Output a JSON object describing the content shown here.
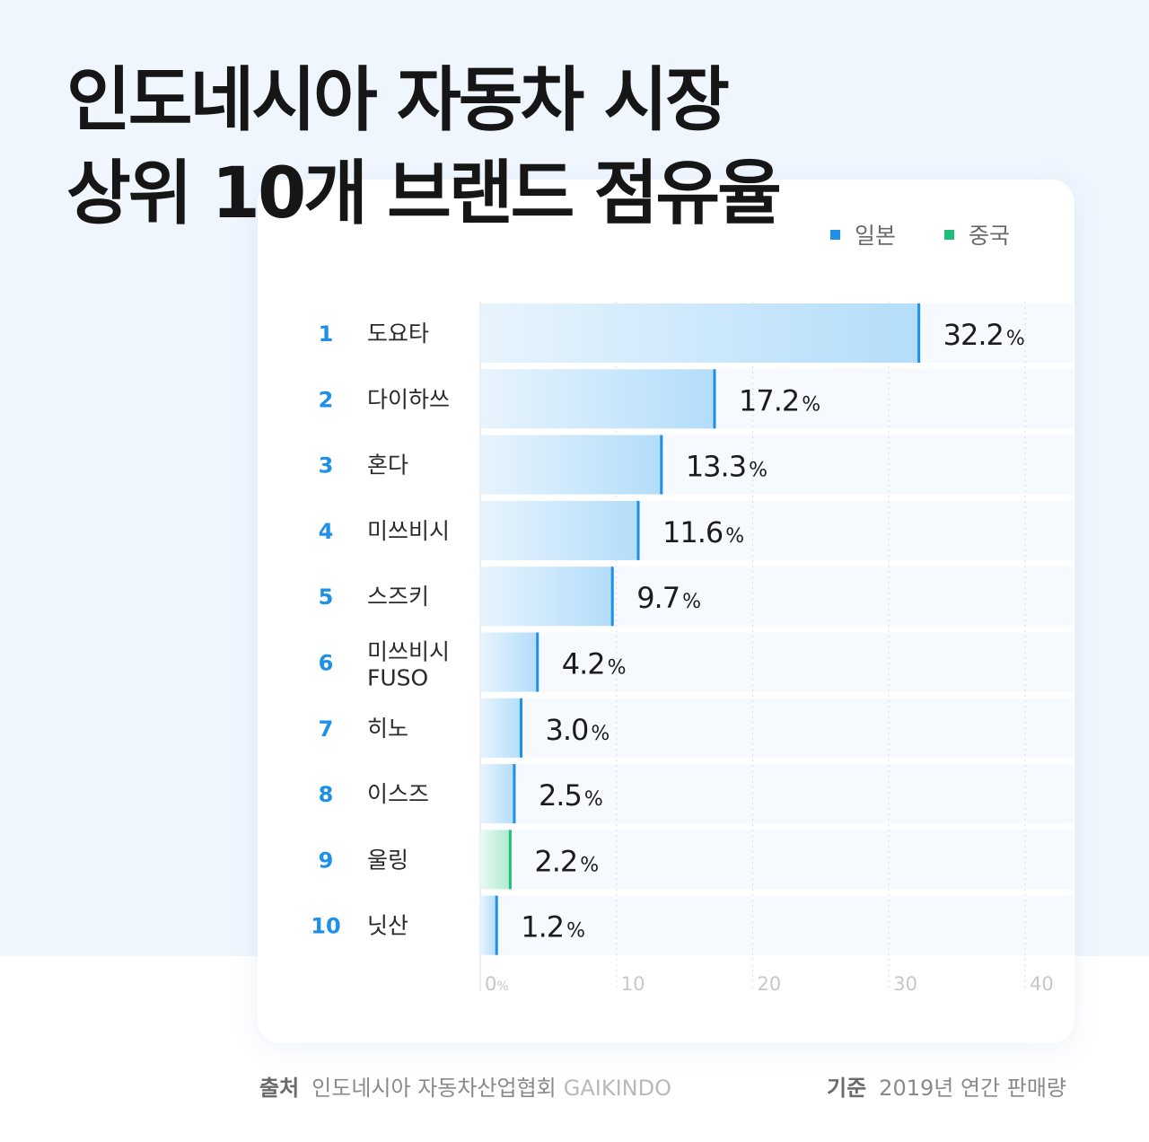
{
  "title": {
    "line1": "인도네시아 자동차 시장",
    "line2": "상위 10개 브랜드 점유율"
  },
  "legend": [
    {
      "label": "일본",
      "color": "#1e90e8"
    },
    {
      "label": "중국",
      "color": "#1fbf7a"
    }
  ],
  "footer": {
    "source_key": "출처",
    "source_org": "인도네시아 자동차산업협회",
    "source_en": "GAIKINDO",
    "basis_key": "기준",
    "basis_value": "2019년 연간 판매량"
  },
  "chart_data": {
    "type": "bar",
    "orientation": "horizontal",
    "ranks": [
      "1",
      "2",
      "3",
      "4",
      "5",
      "6",
      "7",
      "8",
      "9",
      "10"
    ],
    "categories": [
      "도요타",
      "다이하쓰",
      "혼다",
      "미쓰비시",
      "스즈키",
      "미쓰비시 FUSO",
      "히노",
      "이스즈",
      "울링",
      "닛산"
    ],
    "values": [
      32.2,
      17.2,
      13.3,
      11.6,
      9.7,
      4.2,
      3.0,
      2.5,
      2.2,
      1.2
    ],
    "value_labels": [
      "32.2",
      "17.2",
      "13.3",
      "11.6",
      "9.7",
      "4.2",
      "3.0",
      "2.5",
      "2.2",
      "1.2"
    ],
    "value_unit": "%",
    "groups": [
      "일본",
      "일본",
      "일본",
      "일본",
      "일본",
      "일본",
      "일본",
      "일본",
      "중국",
      "일본"
    ],
    "group_colors": {
      "일본": "#1e90e8",
      "중국": "#1fbf7a"
    },
    "xlim": [
      0,
      40
    ],
    "x_ticks": [
      "0%",
      "10",
      "20",
      "30",
      "40"
    ],
    "x_tick_values": [
      0,
      10,
      20,
      30,
      40
    ],
    "grid": true,
    "legend_position": "top-right"
  }
}
